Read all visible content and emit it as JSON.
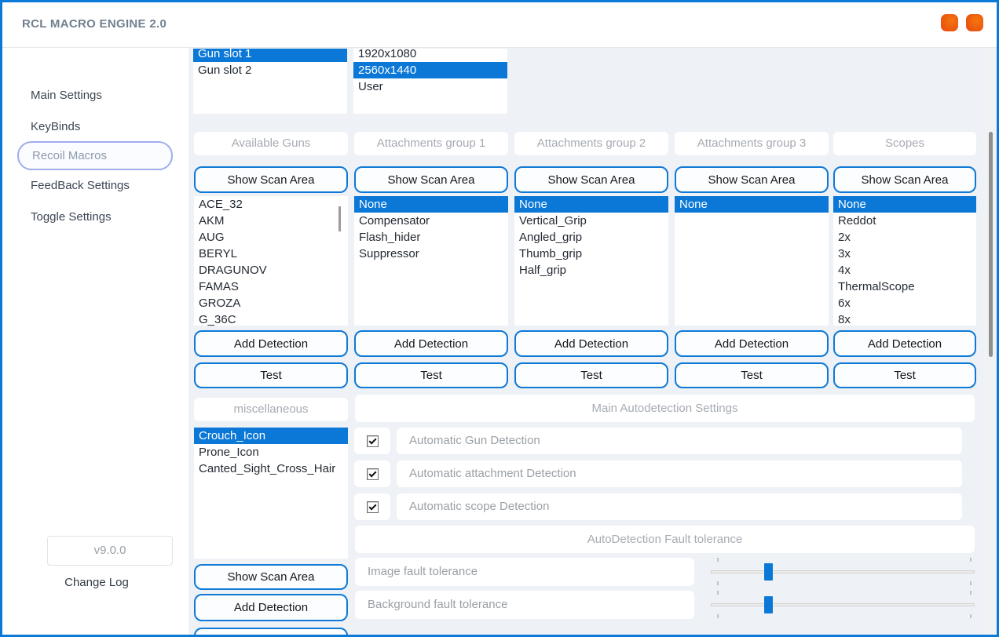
{
  "window": {
    "title": "RCL MACRO ENGINE 2.0"
  },
  "colors": {
    "window_border": "#0b79d7",
    "selection_blue": "#0b78d7",
    "button_border_blue": "#0e79d6",
    "titlebar_button_orange": "#ec5a0e",
    "content_background": "#eef1f5",
    "active_nav_border": "#9fadeb"
  },
  "titlebar": {
    "controls": [
      {
        "id": "minimize"
      },
      {
        "id": "close"
      }
    ]
  },
  "sidebar": {
    "items": [
      {
        "label": "Main Settings",
        "active": false
      },
      {
        "label": "KeyBinds",
        "active": false
      },
      {
        "label": "Recoil Macros",
        "active": true
      },
      {
        "label": "FeedBack Settings",
        "active": false
      },
      {
        "label": "Toggle Settings",
        "active": false
      }
    ],
    "version": "v9.0.0",
    "change_log": "Change Log"
  },
  "slots": {
    "items": [
      {
        "label": "Gun slot 1",
        "selected": true
      },
      {
        "label": "Gun slot 2"
      }
    ]
  },
  "resolutions": {
    "items": [
      {
        "label": "1920x1080"
      },
      {
        "label": "2560x1440",
        "selected": true
      },
      {
        "label": "User"
      }
    ]
  },
  "columns": [
    {
      "title": "Available Guns",
      "scan": "Show Scan Area",
      "add": "Add Detection",
      "test": "Test",
      "items": [
        "ACE_32",
        "AKM",
        "AUG",
        "BERYL",
        "DRAGUNOV",
        "FAMAS",
        "GROZA",
        "G_36C"
      ]
    },
    {
      "title": "Attachments group 1",
      "scan": "Show Scan Area",
      "add": "Add Detection",
      "test": "Test",
      "items": [
        {
          "label": "None",
          "selected": true
        },
        "Compensator",
        "Flash_hider",
        "Suppressor"
      ]
    },
    {
      "title": "Attachments group 2",
      "scan": "Show Scan Area",
      "add": "Add Detection",
      "test": "Test",
      "items": [
        {
          "label": "None",
          "selected": true
        },
        "Vertical_Grip",
        "Angled_grip",
        "Thumb_grip",
        "Half_grip"
      ]
    },
    {
      "title": "Attachments group 3",
      "scan": "Show Scan Area",
      "add": "Add Detection",
      "test": "Test",
      "items": [
        {
          "label": "None",
          "selected": true
        }
      ]
    },
    {
      "title": "Scopes",
      "scan": "Show Scan Area",
      "add": "Add Detection",
      "test": "Test",
      "items": [
        {
          "label": "None",
          "selected": true
        },
        "Reddot",
        "2x",
        "3x",
        "4x",
        "ThermalScope",
        "6x",
        "8x"
      ]
    }
  ],
  "misc": {
    "title": "miscellaneous",
    "scan": "Show Scan Area",
    "add": "Add Detection",
    "items": [
      {
        "label": "Crouch_Icon",
        "selected": true
      },
      "Prone_Icon",
      "Canted_Sight_Cross_Hair"
    ]
  },
  "autodetect": {
    "title": "Main Autodetection Settings",
    "checkboxes": [
      {
        "label": "Automatic Gun Detection",
        "checked": true
      },
      {
        "label": "Automatic attachment Detection",
        "checked": true
      },
      {
        "label": "Automatic scope Detection",
        "checked": true
      }
    ],
    "fault_title": "AutoDetection Fault tolerance",
    "sliders": [
      {
        "label": "Image fault tolerance",
        "value_pct": 20
      },
      {
        "label": "Background fault tolerance",
        "value_pct": 20
      }
    ]
  }
}
